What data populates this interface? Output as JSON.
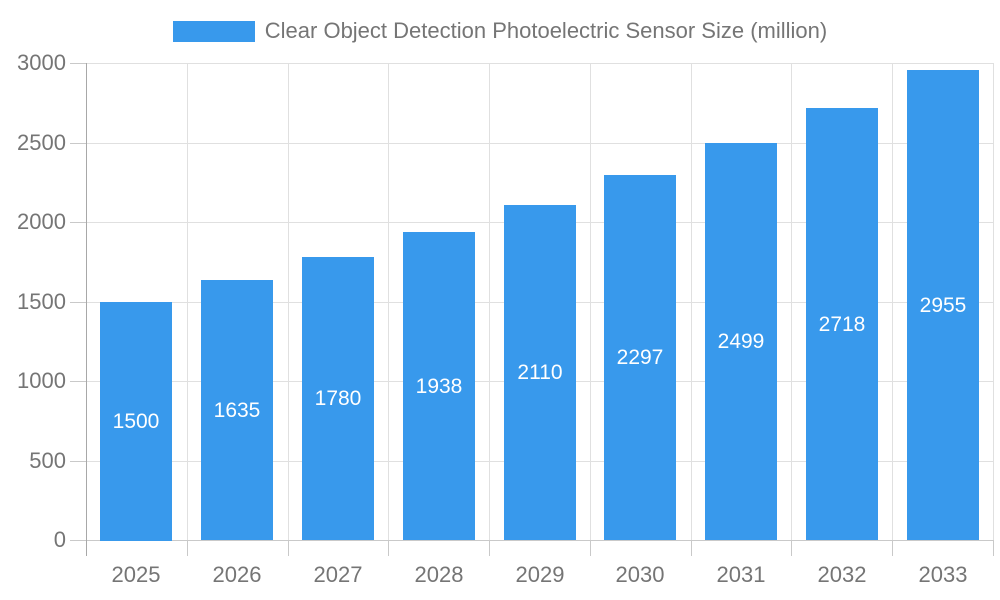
{
  "chart_data": {
    "type": "bar",
    "title": "Clear Object Detection Photoelectric Sensor Size (million)",
    "categories": [
      "2025",
      "2026",
      "2027",
      "2028",
      "2029",
      "2030",
      "2031",
      "2032",
      "2033"
    ],
    "values": [
      1500,
      1635,
      1780,
      1938,
      2110,
      2297,
      2499,
      2718,
      2955
    ],
    "xlabel": "",
    "ylabel": "",
    "ylim": [
      0,
      3000
    ],
    "yticks": [
      0,
      500,
      1000,
      1500,
      2000,
      2500,
      3000
    ],
    "grid": true,
    "legend_position": "top-center",
    "bar_value_labels": "inside-center",
    "colors": {
      "bar": "#3899EC",
      "bar_label_text": "#FFFFFF",
      "axis_text": "#757575",
      "grid_line": "#E0E0E0",
      "axis_line": "#A8A8A8",
      "tick_line": "#C9C9C9",
      "background": "#FFFFFF"
    }
  }
}
